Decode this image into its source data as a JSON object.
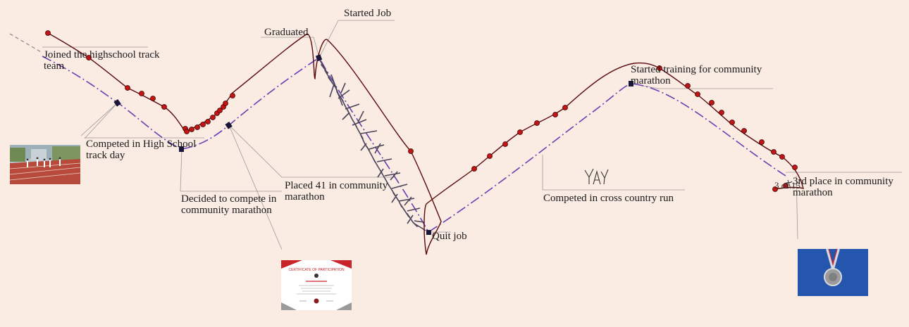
{
  "colors": {
    "background": "#faebe3",
    "plan_line": "#6a3fb0",
    "actual_line": "#5a0a0a",
    "actual_dot": "#c41414",
    "marker": "#1a1638",
    "leader": "#9a9a9a",
    "scribble": "#4a4458"
  },
  "labels": {
    "joined_track": "Joined the highschool track team",
    "competed_track_day": "Competed in High School track day",
    "decided_marathon": "Decided to compete in community marathon",
    "graduated": "Graduated",
    "started_job": "Started Job",
    "placed_41": "Placed 41 in community marathon",
    "quit_job": "Quit job",
    "cross_country": "Competed in cross country run",
    "started_training": "Started training for community marathon",
    "third_place": "3rd place in community marathon",
    "yay_note": "YAY",
    "handwritten_note": "3 of 15"
  },
  "images": {
    "track_photo": "running-track-photo",
    "certificate": "certificate-of-participation",
    "medal": "medal-photo",
    "certificate_title": "CERTIFICATE OF PARTICIPATION"
  }
}
